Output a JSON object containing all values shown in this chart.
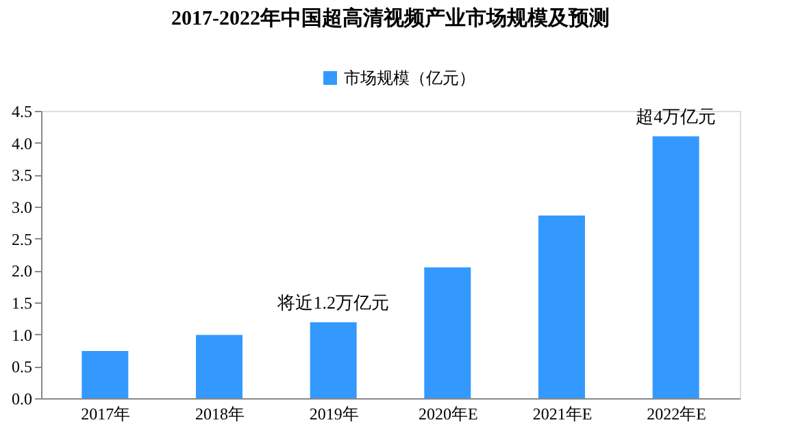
{
  "chart_data": {
    "type": "bar",
    "title": "2017-2022年中国超高清视频产业市场规模及预测",
    "categories": [
      "2017年",
      "2018年",
      "2019年",
      "2020年E",
      "2021年E",
      "2022年E"
    ],
    "series": [
      {
        "name": "市场规模（亿元）",
        "color": "#3399ff",
        "values": [
          0.74,
          0.99,
          1.19,
          2.05,
          2.86,
          4.1
        ]
      }
    ],
    "ylim": [
      0,
      4.5
    ],
    "yticks": [
      {
        "value": 0,
        "label": "0.0"
      },
      {
        "value": 0.5,
        "label": "0.5"
      },
      {
        "value": 1,
        "label": "1.0"
      },
      {
        "value": 1.5,
        "label": "1.5"
      },
      {
        "value": 2,
        "label": "2.0"
      },
      {
        "value": 2.5,
        "label": "2.5"
      },
      {
        "value": 3,
        "label": "3.0"
      },
      {
        "value": 3.5,
        "label": "3.5"
      },
      {
        "value": 4,
        "label": "4.0"
      },
      {
        "value": 4.5,
        "label": "4.5"
      }
    ],
    "grid": false,
    "legend": "top",
    "annotations": [
      {
        "text": "将近1.2万亿元",
        "x": "2019年",
        "y": 1.19
      },
      {
        "text": "超4万亿元",
        "x": "2022年E",
        "y": 4.1
      }
    ]
  }
}
